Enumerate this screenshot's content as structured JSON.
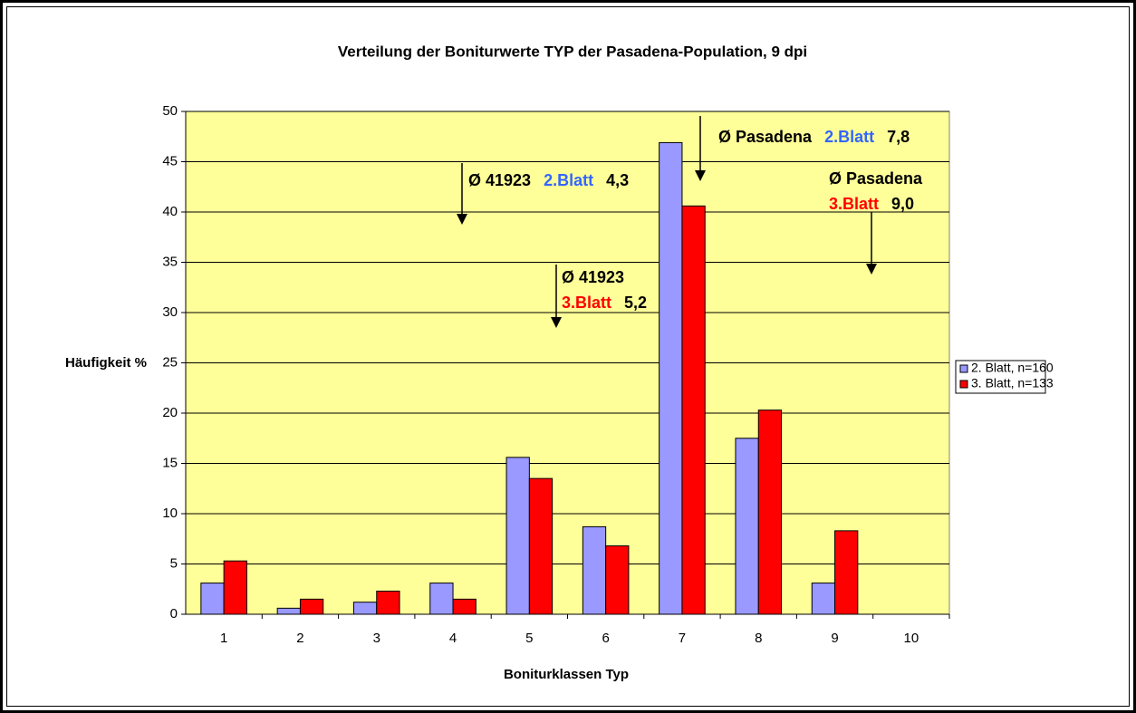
{
  "chart_data": {
    "type": "bar",
    "title": "Verteilung der Boniturwerte TYP der Pasadena-Population, 9 dpi",
    "x_label": "Boniturklassen Typ",
    "y_label": "Häufigkeit %",
    "categories": [
      "1",
      "2",
      "3",
      "4",
      "5",
      "6",
      "7",
      "8",
      "9",
      "10"
    ],
    "series": [
      {
        "name": "2. Blatt, n=160",
        "color": "#9999ff",
        "values": [
          3.1,
          0.6,
          1.2,
          3.1,
          15.6,
          8.7,
          46.9,
          17.5,
          3.1,
          0
        ]
      },
      {
        "name": "3. Blatt, n=133",
        "color": "#ff0000",
        "values": [
          5.3,
          1.5,
          2.3,
          1.5,
          13.5,
          6.8,
          40.6,
          20.3,
          8.3,
          0
        ]
      }
    ],
    "ylim": [
      0,
      50
    ],
    "yticks": [
      0,
      5,
      10,
      15,
      20,
      25,
      30,
      35,
      40,
      45,
      50
    ],
    "grid": true,
    "plot_background": "#ffff99",
    "legend": "right",
    "annotations": [
      {
        "lines": [
          [
            {
              "text": "Ø 41923",
              "color": "#000000"
            },
            {
              "text": "2.Blatt",
              "color": "#3366ff"
            },
            {
              "text": "4,3",
              "color": "#000000"
            }
          ]
        ]
      },
      {
        "lines": [
          [
            {
              "text": "Ø 41923",
              "color": "#000000"
            }
          ],
          [
            {
              "text": "3.Blatt",
              "color": "#ff0000"
            },
            {
              "text": "5,2",
              "color": "#000000"
            }
          ]
        ]
      },
      {
        "lines": [
          [
            {
              "text": "Ø Pasadena",
              "color": "#000000"
            },
            {
              "text": "2.Blatt",
              "color": "#3366ff"
            },
            {
              "text": "7,8",
              "color": "#000000"
            }
          ]
        ]
      },
      {
        "lines": [
          [
            {
              "text": "Ø Pasadena",
              "color": "#000000"
            }
          ],
          [
            {
              "text": "3.Blatt",
              "color": "#ff0000"
            },
            {
              "text": "9,0",
              "color": "#000000"
            }
          ]
        ]
      }
    ]
  }
}
